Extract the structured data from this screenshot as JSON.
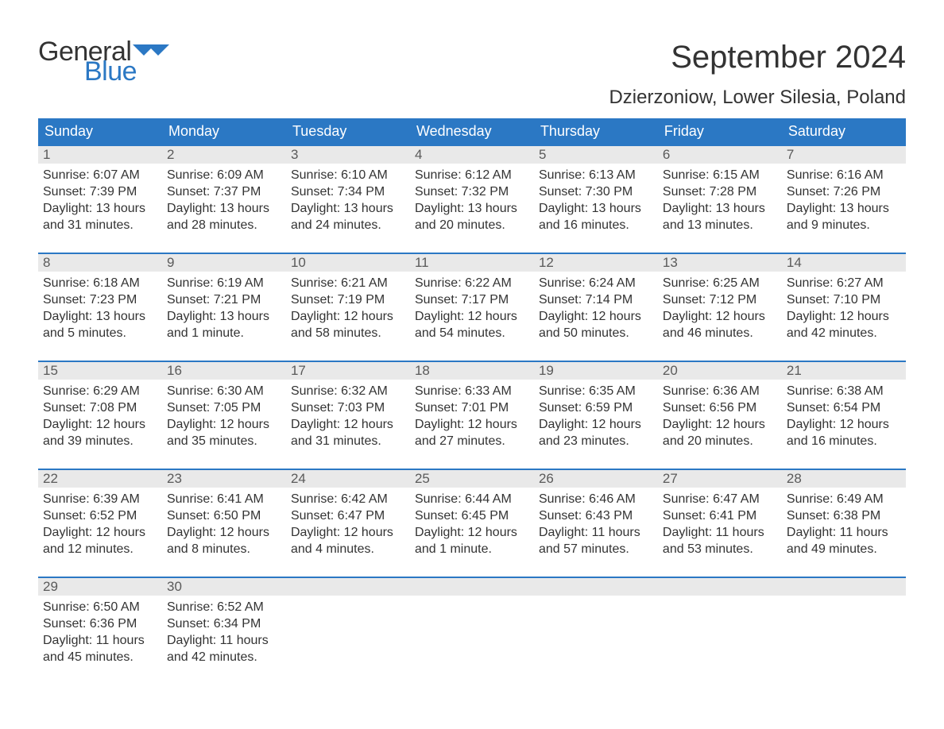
{
  "brand": {
    "general": "General",
    "blue": "Blue",
    "flag_color": "#2b78c4"
  },
  "title": "September 2024",
  "location": "Dzierzoniow, Lower Silesia, Poland",
  "colors": {
    "header_bg": "#2b78c4",
    "header_text": "#ffffff",
    "daynum_bg": "#e9e9e9",
    "daynum_text": "#5a5a5a",
    "body_text": "#333333",
    "row_border": "#2b78c4",
    "page_bg": "#ffffff"
  },
  "typography": {
    "title_fontsize": 40,
    "location_fontsize": 24,
    "weekday_fontsize": 18,
    "daynum_fontsize": 17,
    "body_fontsize": 16
  },
  "weekdays": [
    "Sunday",
    "Monday",
    "Tuesday",
    "Wednesday",
    "Thursday",
    "Friday",
    "Saturday"
  ],
  "weeks": [
    [
      {
        "n": "1",
        "sunrise": "Sunrise: 6:07 AM",
        "sunset": "Sunset: 7:39 PM",
        "day1": "Daylight: 13 hours",
        "day2": "and 31 minutes."
      },
      {
        "n": "2",
        "sunrise": "Sunrise: 6:09 AM",
        "sunset": "Sunset: 7:37 PM",
        "day1": "Daylight: 13 hours",
        "day2": "and 28 minutes."
      },
      {
        "n": "3",
        "sunrise": "Sunrise: 6:10 AM",
        "sunset": "Sunset: 7:34 PM",
        "day1": "Daylight: 13 hours",
        "day2": "and 24 minutes."
      },
      {
        "n": "4",
        "sunrise": "Sunrise: 6:12 AM",
        "sunset": "Sunset: 7:32 PM",
        "day1": "Daylight: 13 hours",
        "day2": "and 20 minutes."
      },
      {
        "n": "5",
        "sunrise": "Sunrise: 6:13 AM",
        "sunset": "Sunset: 7:30 PM",
        "day1": "Daylight: 13 hours",
        "day2": "and 16 minutes."
      },
      {
        "n": "6",
        "sunrise": "Sunrise: 6:15 AM",
        "sunset": "Sunset: 7:28 PM",
        "day1": "Daylight: 13 hours",
        "day2": "and 13 minutes."
      },
      {
        "n": "7",
        "sunrise": "Sunrise: 6:16 AM",
        "sunset": "Sunset: 7:26 PM",
        "day1": "Daylight: 13 hours",
        "day2": "and 9 minutes."
      }
    ],
    [
      {
        "n": "8",
        "sunrise": "Sunrise: 6:18 AM",
        "sunset": "Sunset: 7:23 PM",
        "day1": "Daylight: 13 hours",
        "day2": "and 5 minutes."
      },
      {
        "n": "9",
        "sunrise": "Sunrise: 6:19 AM",
        "sunset": "Sunset: 7:21 PM",
        "day1": "Daylight: 13 hours",
        "day2": "and 1 minute."
      },
      {
        "n": "10",
        "sunrise": "Sunrise: 6:21 AM",
        "sunset": "Sunset: 7:19 PM",
        "day1": "Daylight: 12 hours",
        "day2": "and 58 minutes."
      },
      {
        "n": "11",
        "sunrise": "Sunrise: 6:22 AM",
        "sunset": "Sunset: 7:17 PM",
        "day1": "Daylight: 12 hours",
        "day2": "and 54 minutes."
      },
      {
        "n": "12",
        "sunrise": "Sunrise: 6:24 AM",
        "sunset": "Sunset: 7:14 PM",
        "day1": "Daylight: 12 hours",
        "day2": "and 50 minutes."
      },
      {
        "n": "13",
        "sunrise": "Sunrise: 6:25 AM",
        "sunset": "Sunset: 7:12 PM",
        "day1": "Daylight: 12 hours",
        "day2": "and 46 minutes."
      },
      {
        "n": "14",
        "sunrise": "Sunrise: 6:27 AM",
        "sunset": "Sunset: 7:10 PM",
        "day1": "Daylight: 12 hours",
        "day2": "and 42 minutes."
      }
    ],
    [
      {
        "n": "15",
        "sunrise": "Sunrise: 6:29 AM",
        "sunset": "Sunset: 7:08 PM",
        "day1": "Daylight: 12 hours",
        "day2": "and 39 minutes."
      },
      {
        "n": "16",
        "sunrise": "Sunrise: 6:30 AM",
        "sunset": "Sunset: 7:05 PM",
        "day1": "Daylight: 12 hours",
        "day2": "and 35 minutes."
      },
      {
        "n": "17",
        "sunrise": "Sunrise: 6:32 AM",
        "sunset": "Sunset: 7:03 PM",
        "day1": "Daylight: 12 hours",
        "day2": "and 31 minutes."
      },
      {
        "n": "18",
        "sunrise": "Sunrise: 6:33 AM",
        "sunset": "Sunset: 7:01 PM",
        "day1": "Daylight: 12 hours",
        "day2": "and 27 minutes."
      },
      {
        "n": "19",
        "sunrise": "Sunrise: 6:35 AM",
        "sunset": "Sunset: 6:59 PM",
        "day1": "Daylight: 12 hours",
        "day2": "and 23 minutes."
      },
      {
        "n": "20",
        "sunrise": "Sunrise: 6:36 AM",
        "sunset": "Sunset: 6:56 PM",
        "day1": "Daylight: 12 hours",
        "day2": "and 20 minutes."
      },
      {
        "n": "21",
        "sunrise": "Sunrise: 6:38 AM",
        "sunset": "Sunset: 6:54 PM",
        "day1": "Daylight: 12 hours",
        "day2": "and 16 minutes."
      }
    ],
    [
      {
        "n": "22",
        "sunrise": "Sunrise: 6:39 AM",
        "sunset": "Sunset: 6:52 PM",
        "day1": "Daylight: 12 hours",
        "day2": "and 12 minutes."
      },
      {
        "n": "23",
        "sunrise": "Sunrise: 6:41 AM",
        "sunset": "Sunset: 6:50 PM",
        "day1": "Daylight: 12 hours",
        "day2": "and 8 minutes."
      },
      {
        "n": "24",
        "sunrise": "Sunrise: 6:42 AM",
        "sunset": "Sunset: 6:47 PM",
        "day1": "Daylight: 12 hours",
        "day2": "and 4 minutes."
      },
      {
        "n": "25",
        "sunrise": "Sunrise: 6:44 AM",
        "sunset": "Sunset: 6:45 PM",
        "day1": "Daylight: 12 hours",
        "day2": "and 1 minute."
      },
      {
        "n": "26",
        "sunrise": "Sunrise: 6:46 AM",
        "sunset": "Sunset: 6:43 PM",
        "day1": "Daylight: 11 hours",
        "day2": "and 57 minutes."
      },
      {
        "n": "27",
        "sunrise": "Sunrise: 6:47 AM",
        "sunset": "Sunset: 6:41 PM",
        "day1": "Daylight: 11 hours",
        "day2": "and 53 minutes."
      },
      {
        "n": "28",
        "sunrise": "Sunrise: 6:49 AM",
        "sunset": "Sunset: 6:38 PM",
        "day1": "Daylight: 11 hours",
        "day2": "and 49 minutes."
      }
    ],
    [
      {
        "n": "29",
        "sunrise": "Sunrise: 6:50 AM",
        "sunset": "Sunset: 6:36 PM",
        "day1": "Daylight: 11 hours",
        "day2": "and 45 minutes."
      },
      {
        "n": "30",
        "sunrise": "Sunrise: 6:52 AM",
        "sunset": "Sunset: 6:34 PM",
        "day1": "Daylight: 11 hours",
        "day2": "and 42 minutes."
      },
      null,
      null,
      null,
      null,
      null
    ]
  ]
}
